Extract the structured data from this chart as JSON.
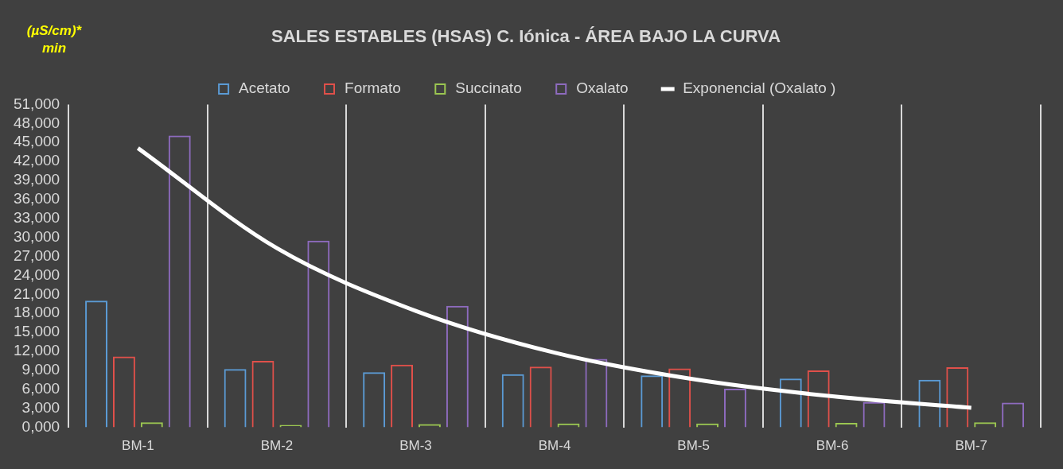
{
  "chart_data": {
    "type": "bar",
    "title": "SALES ESTABLES (HSAS) C. Iónica - ÁREA BAJO LA CURVA",
    "ylabel": "(µS/cm)* min",
    "categories": [
      "BM-1",
      "BM-2",
      "BM-3",
      "BM-4",
      "BM-5",
      "BM-6",
      "BM-7"
    ],
    "series": [
      {
        "name": "Acetato",
        "color": "#5b9bd5",
        "values": [
          20000,
          9200,
          8700,
          8400,
          8200,
          7700,
          7500
        ]
      },
      {
        "name": "Formato",
        "color": "#e0504a",
        "values": [
          11200,
          10500,
          9900,
          9600,
          9300,
          9000,
          9500
        ]
      },
      {
        "name": "Succinato",
        "color": "#9bc651",
        "values": [
          800,
          400,
          500,
          600,
          600,
          700,
          800
        ]
      },
      {
        "name": "Oxalato",
        "color": "#8e6bbf",
        "values": [
          46100,
          29500,
          19200,
          10800,
          6100,
          4000,
          3900
        ]
      },
      {
        "name": "Exponencial (Oxalato )",
        "type": "line",
        "color": "#ffffff",
        "values": [
          44100,
          28300,
          18400,
          11800,
          7600,
          4900,
          3100
        ]
      }
    ],
    "ylim": [
      0,
      51000
    ],
    "yticks": [
      {
        "value": 0,
        "label": "0,000"
      },
      {
        "value": 3000,
        "label": "3,000"
      },
      {
        "value": 6000,
        "label": "6,000"
      },
      {
        "value": 9000,
        "label": "9,000"
      },
      {
        "value": 12000,
        "label": "12,000"
      },
      {
        "value": 15000,
        "label": "15,000"
      },
      {
        "value": 18000,
        "label": "18,000"
      },
      {
        "value": 21000,
        "label": "21,000"
      },
      {
        "value": 24000,
        "label": "24,000"
      },
      {
        "value": 27000,
        "label": "27,000"
      },
      {
        "value": 30000,
        "label": "30,000"
      },
      {
        "value": 33000,
        "label": "33,000"
      },
      {
        "value": 36000,
        "label": "36,000"
      },
      {
        "value": 39000,
        "label": "39,000"
      },
      {
        "value": 42000,
        "label": "42,000"
      },
      {
        "value": 45000,
        "label": "45,000"
      },
      {
        "value": 48000,
        "label": "48,000"
      },
      {
        "value": 51000,
        "label": "51,000"
      }
    ],
    "grid": "x",
    "legend": "top",
    "marker": "none"
  }
}
